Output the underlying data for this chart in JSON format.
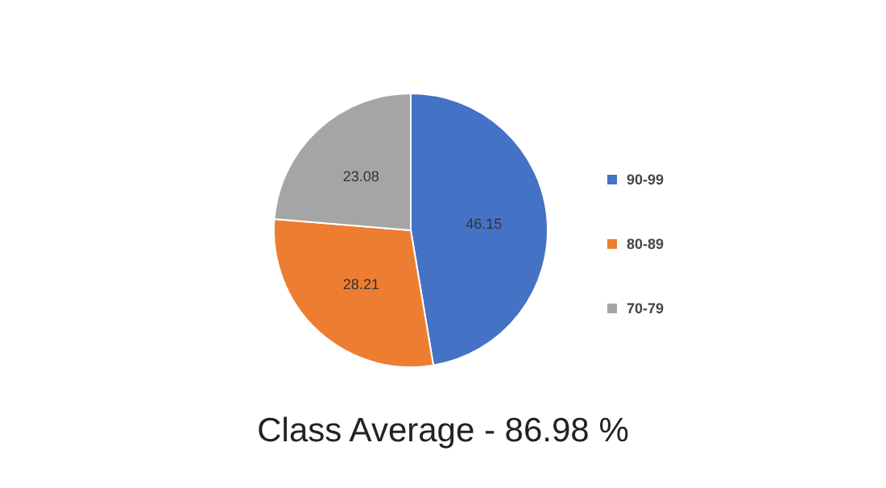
{
  "chart_data": {
    "type": "pie",
    "title": "Class Average - 86.98 %",
    "categories": [
      "90-99",
      "80-89",
      "70-79"
    ],
    "values": [
      46.15,
      28.21,
      23.08
    ],
    "colors": [
      "#4472c4",
      "#ed7d31",
      "#a5a5a5"
    ],
    "data_labels": true,
    "legend": "right"
  }
}
